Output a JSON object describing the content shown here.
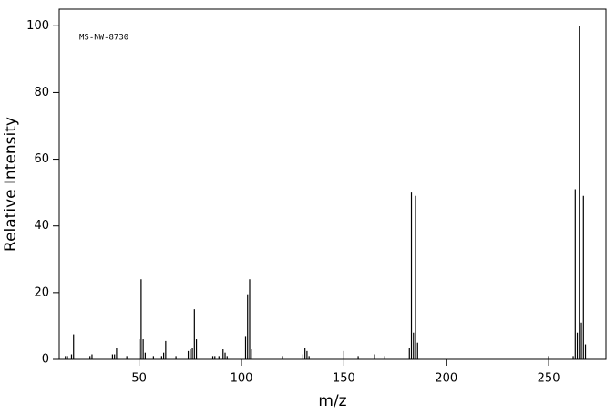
{
  "chart_data": {
    "type": "stem",
    "annotation": "MS-NW-8730",
    "xlabel": "m/z",
    "ylabel": "Relative Intensity",
    "color": "#000000",
    "xlim": [
      11,
      278
    ],
    "xticks": [
      50,
      100,
      150,
      200,
      250
    ],
    "ylim": [
      0,
      105
    ],
    "yticks": [
      0,
      20,
      40,
      60,
      80,
      100
    ],
    "x": [
      14,
      15,
      17,
      18,
      26,
      27,
      37,
      38,
      39,
      44,
      50,
      51,
      52,
      53,
      57,
      61,
      62,
      63,
      68,
      74,
      75,
      76,
      77,
      78,
      86,
      87,
      89,
      91,
      92,
      93,
      102,
      103,
      104,
      105,
      120,
      130,
      131,
      132,
      133,
      150,
      157,
      165,
      170,
      182,
      183,
      184,
      185,
      186,
      250,
      262,
      263,
      264,
      265,
      266,
      267,
      268
    ],
    "values": [
      1,
      1,
      1.5,
      7.5,
      1,
      1.5,
      1.5,
      1.5,
      3.5,
      1,
      6,
      24,
      6,
      2,
      1,
      1,
      2,
      5.5,
      1,
      2.5,
      3,
      3.5,
      15,
      6,
      1,
      1,
      1,
      3,
      2,
      1,
      7,
      19.5,
      24,
      3,
      1,
      1.5,
      3.5,
      2.5,
      1,
      2.5,
      1,
      1.5,
      1,
      3.5,
      50,
      8,
      49,
      5,
      1,
      1,
      51,
      8,
      100,
      11,
      49,
      4.5
    ]
  }
}
